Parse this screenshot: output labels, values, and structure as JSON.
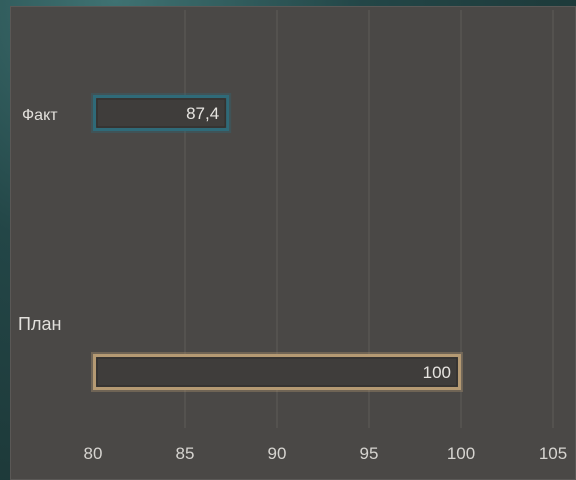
{
  "chart_data": {
    "type": "bar",
    "orientation": "horizontal",
    "categories": [
      "Факт",
      "План"
    ],
    "values": [
      87.4,
      100
    ],
    "value_labels": [
      "87,4",
      "100"
    ],
    "bar_colors": [
      "#2f6a78",
      "#b59a73"
    ],
    "bar_fill": "#3f3d3b",
    "xlim": [
      80,
      105
    ],
    "xticks": [
      80,
      85,
      90,
      95,
      100,
      105
    ],
    "grid": true,
    "title": "",
    "xlabel": "",
    "ylabel": ""
  }
}
